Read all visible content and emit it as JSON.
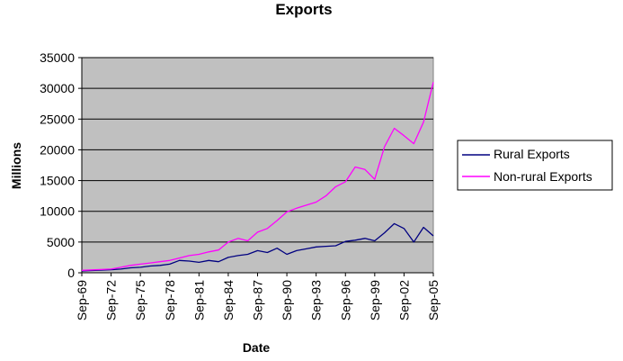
{
  "chart_data": {
    "type": "line",
    "title": "Exports",
    "xlabel": "Date",
    "ylabel": "Millions",
    "ylim": [
      0,
      35000
    ],
    "yticks": [
      "0",
      "5000",
      "10000",
      "15000",
      "20000",
      "25000",
      "30000",
      "35000"
    ],
    "xlim": [
      "Sep-69",
      "Sep-05"
    ],
    "xticks": [
      "Sep-69",
      "Sep-72",
      "Sep-75",
      "Sep-78",
      "Sep-81",
      "Sep-84",
      "Sep-87",
      "Sep-90",
      "Sep-93",
      "Sep-96",
      "Sep-99",
      "Sep-02",
      "Sep-05"
    ],
    "grid": "horizontal",
    "plot_background": "#c0c0c0",
    "legend": "right",
    "series": [
      {
        "name": "Rural Exports",
        "color": "#000080",
        "x": [
          "Sep-69",
          "Sep-72",
          "Sep-73",
          "Sep-74",
          "Sep-75",
          "Sep-76",
          "Sep-77",
          "Sep-78",
          "Sep-79",
          "Sep-80",
          "Sep-81",
          "Sep-82",
          "Sep-83",
          "Sep-84",
          "Sep-85",
          "Sep-86",
          "Sep-87",
          "Sep-88",
          "Sep-89",
          "Sep-90",
          "Sep-91",
          "Sep-92",
          "Sep-93",
          "Sep-94",
          "Sep-95",
          "Sep-96",
          "Sep-97",
          "Sep-98",
          "Sep-99",
          "Sep-00",
          "Sep-01",
          "Sep-02",
          "Sep-03",
          "Sep-04",
          "Sep-05"
        ],
        "values": [
          300,
          500,
          600,
          800,
          900,
          1100,
          1200,
          1400,
          2000,
          1900,
          1700,
          2000,
          1800,
          2500,
          2800,
          3000,
          3600,
          3300,
          4000,
          3000,
          3600,
          3900,
          4200,
          4300,
          4400,
          5100,
          5300,
          5600,
          5200,
          6500,
          8000,
          7200,
          5000,
          7400,
          6000
        ]
      },
      {
        "name": "Non-rural Exports",
        "color": "#ff00ff",
        "x": [
          "Sep-69",
          "Sep-72",
          "Sep-73",
          "Sep-74",
          "Sep-75",
          "Sep-76",
          "Sep-77",
          "Sep-78",
          "Sep-79",
          "Sep-80",
          "Sep-81",
          "Sep-82",
          "Sep-83",
          "Sep-84",
          "Sep-85",
          "Sep-86",
          "Sep-87",
          "Sep-88",
          "Sep-89",
          "Sep-90",
          "Sep-91",
          "Sep-92",
          "Sep-93",
          "Sep-94",
          "Sep-95",
          "Sep-96",
          "Sep-97",
          "Sep-98",
          "Sep-99",
          "Sep-00",
          "Sep-01",
          "Sep-02",
          "Sep-03",
          "Sep-04",
          "Sep-05"
        ],
        "values": [
          400,
          600,
          900,
          1200,
          1400,
          1600,
          1800,
          2000,
          2400,
          2800,
          3000,
          3400,
          3700,
          5000,
          5600,
          5200,
          6600,
          7200,
          8500,
          9900,
          10500,
          11000,
          11500,
          12500,
          14000,
          14800,
          17200,
          16800,
          15200,
          20500,
          23500,
          22300,
          21000,
          24500,
          31000
        ]
      }
    ]
  }
}
